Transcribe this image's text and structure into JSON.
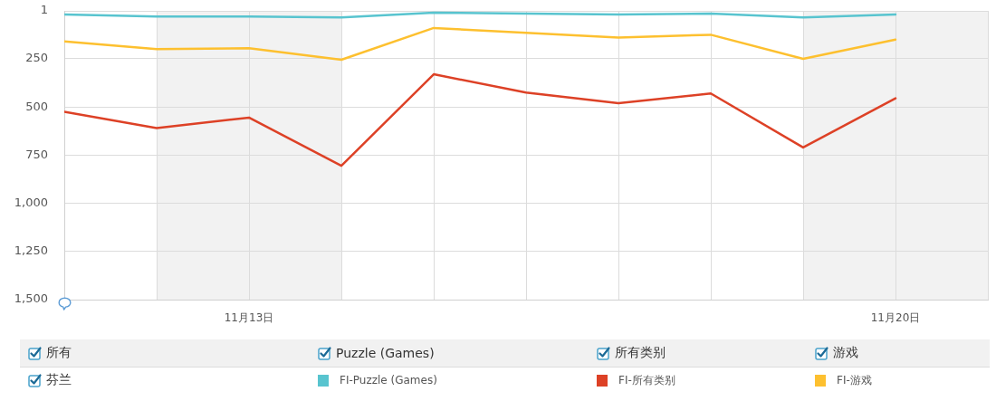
{
  "chart_data": {
    "type": "line",
    "x": [
      "--11-11",
      "--11-12",
      "--11-13",
      "--11-14",
      "--11-15",
      "--11-16",
      "--11-17",
      "--11-18",
      "--11-19",
      "--11-20"
    ],
    "series": [
      {
        "name": "FI-Puzzle (Games)",
        "color": "#58c4cf",
        "values": [
          20,
          30,
          30,
          35,
          10,
          15,
          20,
          15,
          35,
          20
        ]
      },
      {
        "name": "FI-所有类别",
        "color": "#dd4126",
        "values": [
          525,
          610,
          555,
          805,
          330,
          425,
          480,
          430,
          710,
          455
        ]
      },
      {
        "name": "FI-游戏",
        "color": "#fdc02f",
        "values": [
          160,
          200,
          195,
          255,
          90,
          115,
          140,
          125,
          250,
          150
        ]
      }
    ],
    "xlim": [
      "--11-11",
      "--11-21"
    ],
    "xticks": [
      {
        "value": "--11-11",
        "label": null
      },
      {
        "value": "--11-12",
        "label": null
      },
      {
        "value": "--11-13",
        "label": "11月13日"
      },
      {
        "value": "--11-14",
        "label": null
      },
      {
        "value": "--11-15",
        "label": null
      },
      {
        "value": "--11-16",
        "label": null
      },
      {
        "value": "--11-17",
        "label": null
      },
      {
        "value": "--11-18",
        "label": null
      },
      {
        "value": "--11-19",
        "label": null
      },
      {
        "value": "--11-20",
        "label": "11月20日"
      },
      {
        "value": "--11-21",
        "label": null
      }
    ],
    "ylim": [
      1500,
      1
    ],
    "yticks": [
      1,
      250,
      500,
      750,
      {
        "value": 1000,
        "label": "1,000"
      },
      {
        "value": 1250,
        "label": "1,250"
      },
      {
        "value": 1500,
        "label": "1,500"
      }
    ],
    "bands": [
      {
        "axis": "x",
        "from": "--11-12",
        "to": "--11-14",
        "color": "#f2f2f2"
      },
      {
        "axis": "x",
        "from": "--11-19",
        "to": "--11-21",
        "color": "#f2f2f2"
      }
    ],
    "grid": true,
    "legend": "bottom",
    "marker": "none",
    "line_style": "solid",
    "annotations": [
      "所有",
      "Puzzle (Games)",
      "所有类别",
      "游戏",
      "芬兰"
    ]
  }
}
